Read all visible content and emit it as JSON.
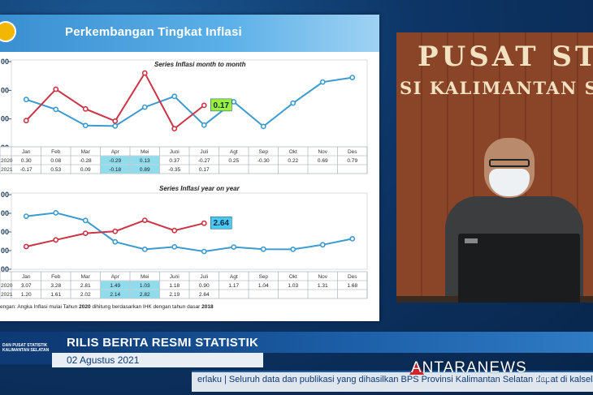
{
  "slide": {
    "title": "Perkembangan Tingkat Inflasi",
    "note_prefix": "engan: Angka Inflasi mulai Tahun ",
    "note_year1": "2020",
    "note_middle": " dihitung berdasarkan IHK dengan tahun dasar ",
    "note_year2": "2018"
  },
  "colors": {
    "series_2020": "#3b9bd0",
    "series_2021": "#cc3344"
  },
  "chart_data": [
    {
      "type": "line",
      "title": "Series Inflasi month to month",
      "categories": [
        "Jan",
        "Feb",
        "Mar",
        "Apr",
        "Mei",
        "Juni",
        "Juli",
        "Agt",
        "Sep",
        "Okt",
        "Nov",
        "Des"
      ],
      "series": [
        {
          "name": "2020",
          "values": [
            0.3,
            0.08,
            -0.28,
            -0.29,
            0.13,
            0.37,
            -0.27,
            0.25,
            -0.3,
            0.22,
            0.69,
            0.79
          ]
        },
        {
          "name": "2021",
          "values": [
            -0.17,
            0.53,
            0.09,
            -0.18,
            0.89,
            -0.35,
            0.17,
            null,
            null,
            null,
            null,
            null
          ]
        }
      ],
      "table": {
        "row_labels": [
          "2020",
          "2021"
        ],
        "rows": [
          [
            "0.30",
            "0.08",
            "-0.28",
            "-0.29",
            "0.13",
            "0.37",
            "-0.27",
            "0.25",
            "-0.30",
            "0.22",
            "0.69",
            "0.79"
          ],
          [
            "-0.17",
            "0.53",
            "0.09",
            "-0.18",
            "0.89",
            "-0.35",
            "0.17",
            "",
            "",
            "",
            "",
            ""
          ]
        ]
      },
      "y_tick_labels": [
        "00",
        "00",
        "00",
        "00"
      ],
      "callout": "0.17",
      "ylim": [
        -0.7,
        1.0
      ]
    },
    {
      "type": "line",
      "title": "Series Inflasi year on year",
      "categories": [
        "Jan",
        "Feb",
        "Mar",
        "Apr",
        "Mei",
        "Juni",
        "Juli",
        "Agt",
        "Sep",
        "Okt",
        "Nov",
        "Des"
      ],
      "series": [
        {
          "name": "2020",
          "values": [
            3.07,
            3.28,
            2.81,
            1.49,
            1.03,
            1.18,
            0.9,
            1.17,
            1.04,
            1.03,
            1.31,
            1.68
          ]
        },
        {
          "name": "2021",
          "values": [
            1.2,
            1.61,
            2.02,
            2.14,
            2.82,
            2.19,
            2.64,
            null,
            null,
            null,
            null,
            null
          ]
        }
      ],
      "table": {
        "row_labels": [
          "2020",
          "2021"
        ],
        "rows": [
          [
            "3.07",
            "3.28",
            "2.81",
            "1.49",
            "1.03",
            "1.18",
            "0.90",
            "1.17",
            "1.04",
            "1.03",
            "1.31",
            "1.68"
          ],
          [
            "1.20",
            "1.61",
            "2.02",
            "2.14",
            "2.82",
            "2.19",
            "2.64",
            "",
            "",
            "",
            "",
            ""
          ]
        ]
      },
      "y_tick_labels": [
        "00",
        "00",
        "00",
        "00",
        "00"
      ],
      "callout": "2.64",
      "ylim": [
        0.0,
        4.0
      ]
    }
  ],
  "video": {
    "sign_line1": "PUSAT STA",
    "sign_line2": "SI KALIMANTAN S"
  },
  "lower_third": {
    "logo_line1": "DAN PUSAT STATISTIK",
    "logo_line2": "KALIMANTAN SELATAN",
    "title": "RILIS BERITA RESMI STATISTIK",
    "date": "02 Agustus 2021",
    "ticker": "erlaku | Seluruh data dan publikasi yang dihasilkan BPS Provinsi Kalimantan Selatan dapat          di kalsel.",
    "antara_logo": "ANTARANEWS",
    "antara_com": ".com"
  }
}
